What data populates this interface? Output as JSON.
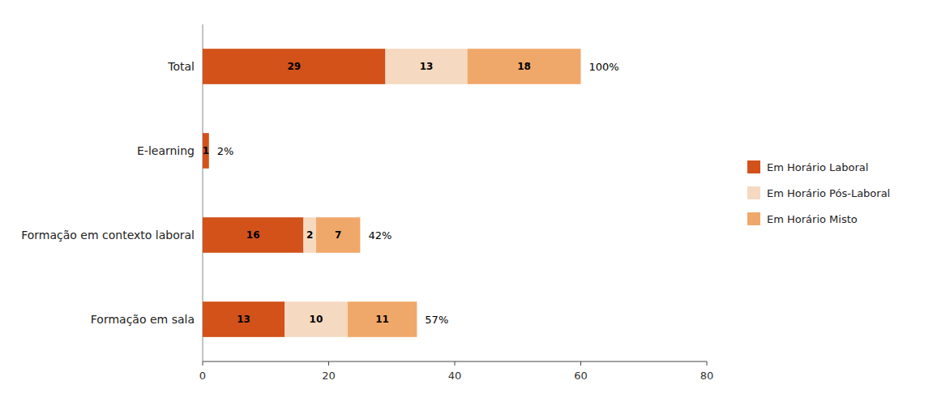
{
  "chart_data": {
    "type": "bar",
    "orientation": "horizontal",
    "stacked": true,
    "categories": [
      "Formação em sala",
      "Formação em contexto laboral",
      "E-learning",
      "Total"
    ],
    "series": [
      {
        "name": "Em Horário Laboral",
        "color": "#D2521A",
        "values": [
          13,
          16,
          1,
          29
        ]
      },
      {
        "name": "Em Horário Pós-Laboral",
        "color": "#F5D9C0",
        "values": [
          10,
          2,
          0,
          13
        ]
      },
      {
        "name": "Em Horário Misto",
        "color": "#F0A86A",
        "values": [
          11,
          7,
          0,
          18
        ]
      }
    ],
    "annotations": [
      "57%",
      "42%",
      "2%",
      "100%"
    ],
    "xlim": [
      0,
      80
    ],
    "xticks": [
      0,
      20,
      40,
      60,
      80
    ],
    "data_labels": true,
    "grid": false,
    "legend": "right"
  }
}
